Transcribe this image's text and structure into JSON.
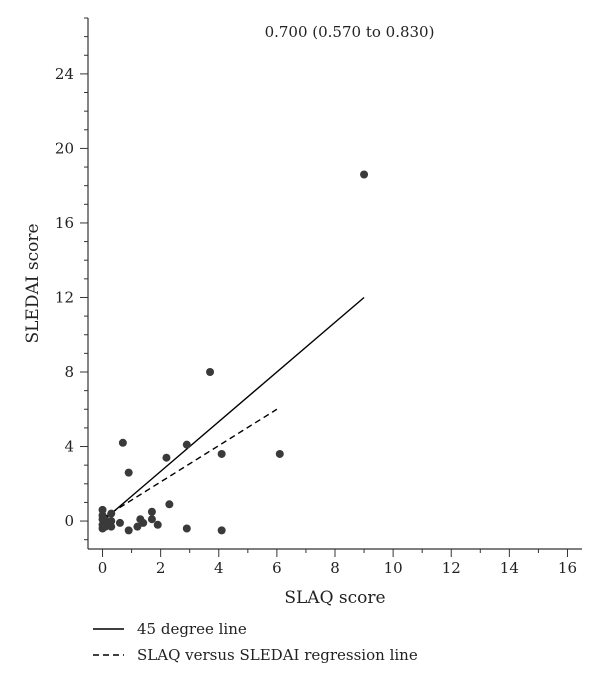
{
  "chart_data": {
    "type": "scatter",
    "annotation": "0.700 (0.570 to 0.830)",
    "xlabel": "SLAQ score",
    "ylabel": "SLEDAI score",
    "xlim": [
      -0.5,
      16.5
    ],
    "ylim": [
      -1.5,
      27
    ],
    "xticks": [
      0,
      2,
      4,
      6,
      8,
      10,
      12,
      14,
      16
    ],
    "yticks": [
      0,
      4,
      8,
      12,
      16,
      20,
      24
    ],
    "x_minor_step": 1,
    "y_minor_step": 1,
    "grid": false,
    "point_color": "#3a3a3a",
    "line_color": "#000000",
    "points": [
      {
        "x": 0,
        "y": -0.4
      },
      {
        "x": 0,
        "y": -0.2
      },
      {
        "x": 0,
        "y": 0.1
      },
      {
        "x": 0,
        "y": 0.3
      },
      {
        "x": 0,
        "y": 0.6
      },
      {
        "x": 0.1,
        "y": -0.3
      },
      {
        "x": 0.15,
        "y": 0.0
      },
      {
        "x": 0.3,
        "y": 0.0
      },
      {
        "x": 0.3,
        "y": 0.4
      },
      {
        "x": 0.3,
        "y": -0.3
      },
      {
        "x": 0.6,
        "y": -0.1
      },
      {
        "x": 0.7,
        "y": 4.2
      },
      {
        "x": 0.9,
        "y": 2.6
      },
      {
        "x": 0.9,
        "y": -0.5
      },
      {
        "x": 1.2,
        "y": -0.3
      },
      {
        "x": 1.3,
        "y": 0.1
      },
      {
        "x": 1.4,
        "y": -0.1
      },
      {
        "x": 1.7,
        "y": 0.1
      },
      {
        "x": 1.7,
        "y": 0.5
      },
      {
        "x": 1.9,
        "y": -0.2
      },
      {
        "x": 2.2,
        "y": 3.4
      },
      {
        "x": 2.3,
        "y": 0.9
      },
      {
        "x": 2.9,
        "y": 4.1
      },
      {
        "x": 2.9,
        "y": -0.4
      },
      {
        "x": 3.7,
        "y": 8.0
      },
      {
        "x": 4.1,
        "y": 3.6
      },
      {
        "x": 4.1,
        "y": -0.5
      },
      {
        "x": 6.1,
        "y": 3.6
      },
      {
        "x": 9.0,
        "y": 18.6
      }
    ],
    "lines": [
      {
        "name": "45 degree line",
        "style": "solid",
        "x": [
          0,
          9
        ],
        "y": [
          0,
          12
        ]
      },
      {
        "name": "SLAQ versus SLEDAI regression line",
        "style": "dashed",
        "x": [
          0,
          6
        ],
        "y": [
          0.15,
          6.0
        ]
      }
    ],
    "legend_position": "bottom-left"
  }
}
